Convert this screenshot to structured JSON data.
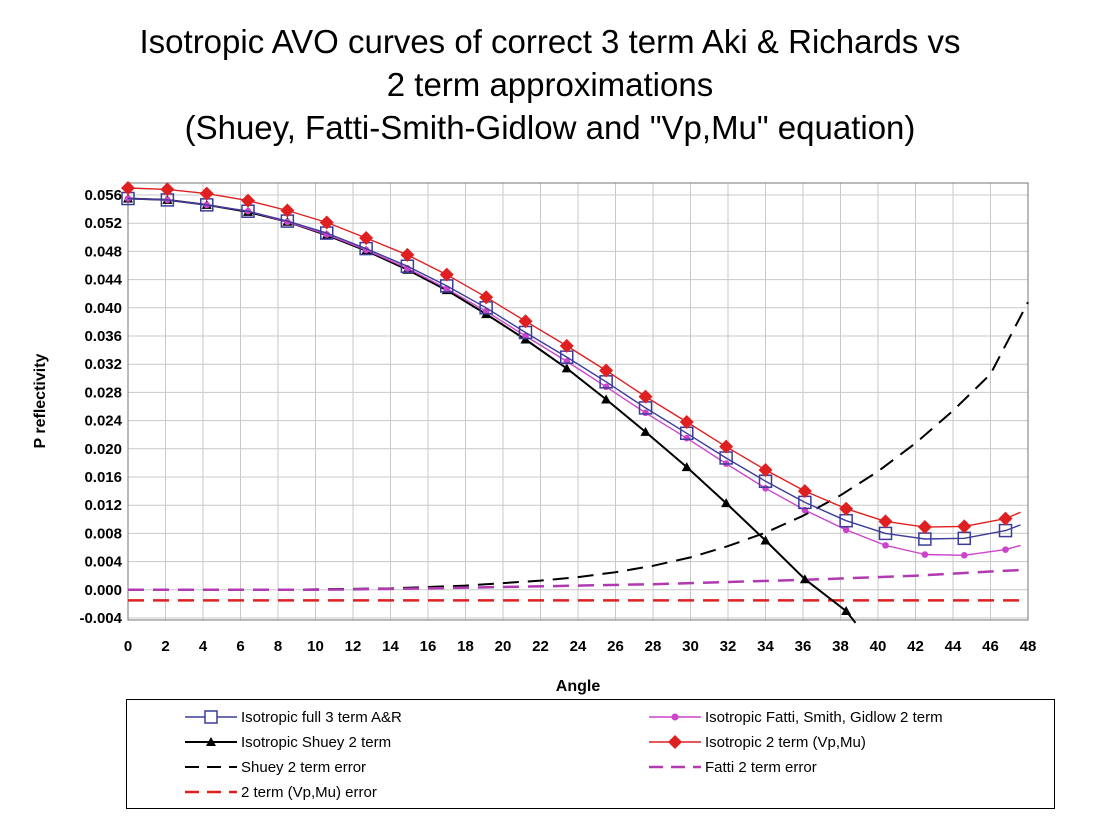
{
  "chart_data": {
    "type": "line",
    "title_lines": [
      "Isotropic AVO curves of correct 3 term Aki & Richards vs",
      "2 term approximations",
      "(Shuey, Fatti-Smith-Gidlow and \"Vp,Mu\" equation)"
    ],
    "xlabel": "Angle",
    "ylabel": "P reflectivity",
    "xlim": [
      0,
      48
    ],
    "ylim": [
      -0.004,
      0.058
    ],
    "x_ticks": [
      0,
      2,
      4,
      6,
      8,
      10,
      12,
      14,
      16,
      18,
      20,
      22,
      24,
      26,
      28,
      30,
      32,
      34,
      36,
      38,
      40,
      42,
      44,
      46,
      48
    ],
    "y_ticks": [
      "0.056",
      "0.052",
      "0.048",
      "0.044",
      "0.040",
      "0.036",
      "0.032",
      "0.028",
      "0.024",
      "0.020",
      "0.016",
      "0.012",
      "0.008",
      "0.004",
      "0.000",
      "-0.004"
    ],
    "y_tick_values": [
      0.056,
      0.052,
      0.048,
      0.044,
      0.04,
      0.036,
      0.032,
      0.028,
      0.024,
      0.02,
      0.016,
      0.012,
      0.008,
      0.004,
      0.0,
      -0.004
    ],
    "grid": true,
    "legend_position": "bottom",
    "series": [
      {
        "name": "Isotropic full 3 term A&R",
        "color": "#3c3c9a",
        "marker": "open-square",
        "x": [
          0,
          2.1,
          4.2,
          6.4,
          8.5,
          10.6,
          12.7,
          14.9,
          17.0,
          19.1,
          21.2,
          23.4,
          25.5,
          27.6,
          29.8,
          31.9,
          34.0,
          36.1,
          38.3,
          40.4,
          42.5,
          44.6,
          46.8,
          47.6
        ],
        "y": [
          0.0555,
          0.0553,
          0.0546,
          0.0537,
          0.0523,
          0.0506,
          0.0484,
          0.0459,
          0.0431,
          0.04,
          0.0365,
          0.033,
          0.0295,
          0.0258,
          0.0222,
          0.0187,
          0.0154,
          0.0124,
          0.0098,
          0.008,
          0.0072,
          0.0073,
          0.0084,
          0.0092
        ]
      },
      {
        "name": "Isotropic Fatti, Smith, Gidlow 2 term",
        "color": "#cc44cc",
        "marker": "circle",
        "x": [
          0,
          2.1,
          4.2,
          6.4,
          8.5,
          10.6,
          12.7,
          14.9,
          17.0,
          19.1,
          21.2,
          23.4,
          25.5,
          27.6,
          29.8,
          31.9,
          34.0,
          36.1,
          38.3,
          40.4,
          42.5,
          44.6,
          46.8,
          47.6
        ],
        "y": [
          0.0555,
          0.0553,
          0.0546,
          0.0537,
          0.0522,
          0.0504,
          0.0482,
          0.0456,
          0.0427,
          0.0395,
          0.036,
          0.0324,
          0.0288,
          0.0251,
          0.0215,
          0.0179,
          0.0144,
          0.0113,
          0.0085,
          0.0063,
          0.005,
          0.0049,
          0.0057,
          0.0063
        ]
      },
      {
        "name": "Isotropic Shuey 2 term",
        "color": "#000000",
        "marker": "triangle",
        "x": [
          0,
          2.1,
          4.2,
          6.4,
          8.5,
          10.6,
          12.7,
          14.9,
          17.0,
          19.1,
          21.2,
          23.4,
          25.5,
          27.6,
          29.8,
          31.9,
          34.0,
          36.1,
          38.3,
          38.8
        ],
        "y": [
          0.0555,
          0.0553,
          0.0546,
          0.0536,
          0.0522,
          0.0503,
          0.0481,
          0.0454,
          0.0425,
          0.0391,
          0.0355,
          0.0314,
          0.027,
          0.0224,
          0.0174,
          0.0123,
          0.007,
          0.0015,
          -0.003,
          -0.0047
        ]
      },
      {
        "name": "Isotropic 2 term (Vp,Mu)",
        "color": "#e02020",
        "marker": "diamond",
        "x": [
          0,
          2.1,
          4.2,
          6.4,
          8.5,
          10.6,
          12.7,
          14.9,
          17.0,
          19.1,
          21.2,
          23.4,
          25.5,
          27.6,
          29.8,
          31.9,
          34.0,
          36.1,
          38.3,
          40.4,
          42.5,
          44.6,
          46.8,
          47.6
        ],
        "y": [
          0.057,
          0.0568,
          0.0562,
          0.0552,
          0.0538,
          0.0521,
          0.0499,
          0.0475,
          0.0447,
          0.0415,
          0.0381,
          0.0346,
          0.0311,
          0.0274,
          0.0238,
          0.0203,
          0.017,
          0.014,
          0.0115,
          0.0097,
          0.0089,
          0.009,
          0.0101,
          0.011
        ]
      },
      {
        "name": "Shuey 2 term error",
        "color": "#000000",
        "marker": "none",
        "dash": "long",
        "x": [
          0,
          8,
          14,
          18,
          22,
          24,
          26,
          28,
          30,
          32,
          34,
          36,
          38,
          40,
          42,
          44,
          46,
          48
        ],
        "y": [
          0.0,
          0.0,
          0.0002,
          0.0006,
          0.0013,
          0.0018,
          0.0025,
          0.0034,
          0.0046,
          0.0062,
          0.0081,
          0.0105,
          0.0134,
          0.0168,
          0.0208,
          0.0254,
          0.0306,
          0.0408
        ]
      },
      {
        "name": "Fatti 2 term error",
        "color": "#b13ab1",
        "marker": "none",
        "dash": "long",
        "x": [
          0,
          10,
          16,
          20,
          24,
          28,
          32,
          36,
          38,
          40,
          42,
          44,
          46,
          47.6
        ],
        "y": [
          0.0,
          0.0,
          0.0002,
          0.0004,
          0.0006,
          0.0008,
          0.0011,
          0.0014,
          0.0016,
          0.0018,
          0.002,
          0.0023,
          0.0026,
          0.0028
        ]
      },
      {
        "name": "2 term (Vp,Mu) error",
        "color": "#e02020",
        "marker": "none",
        "dash": "long",
        "x": [
          0,
          48
        ],
        "y": [
          -0.0015,
          -0.0015
        ]
      }
    ]
  }
}
